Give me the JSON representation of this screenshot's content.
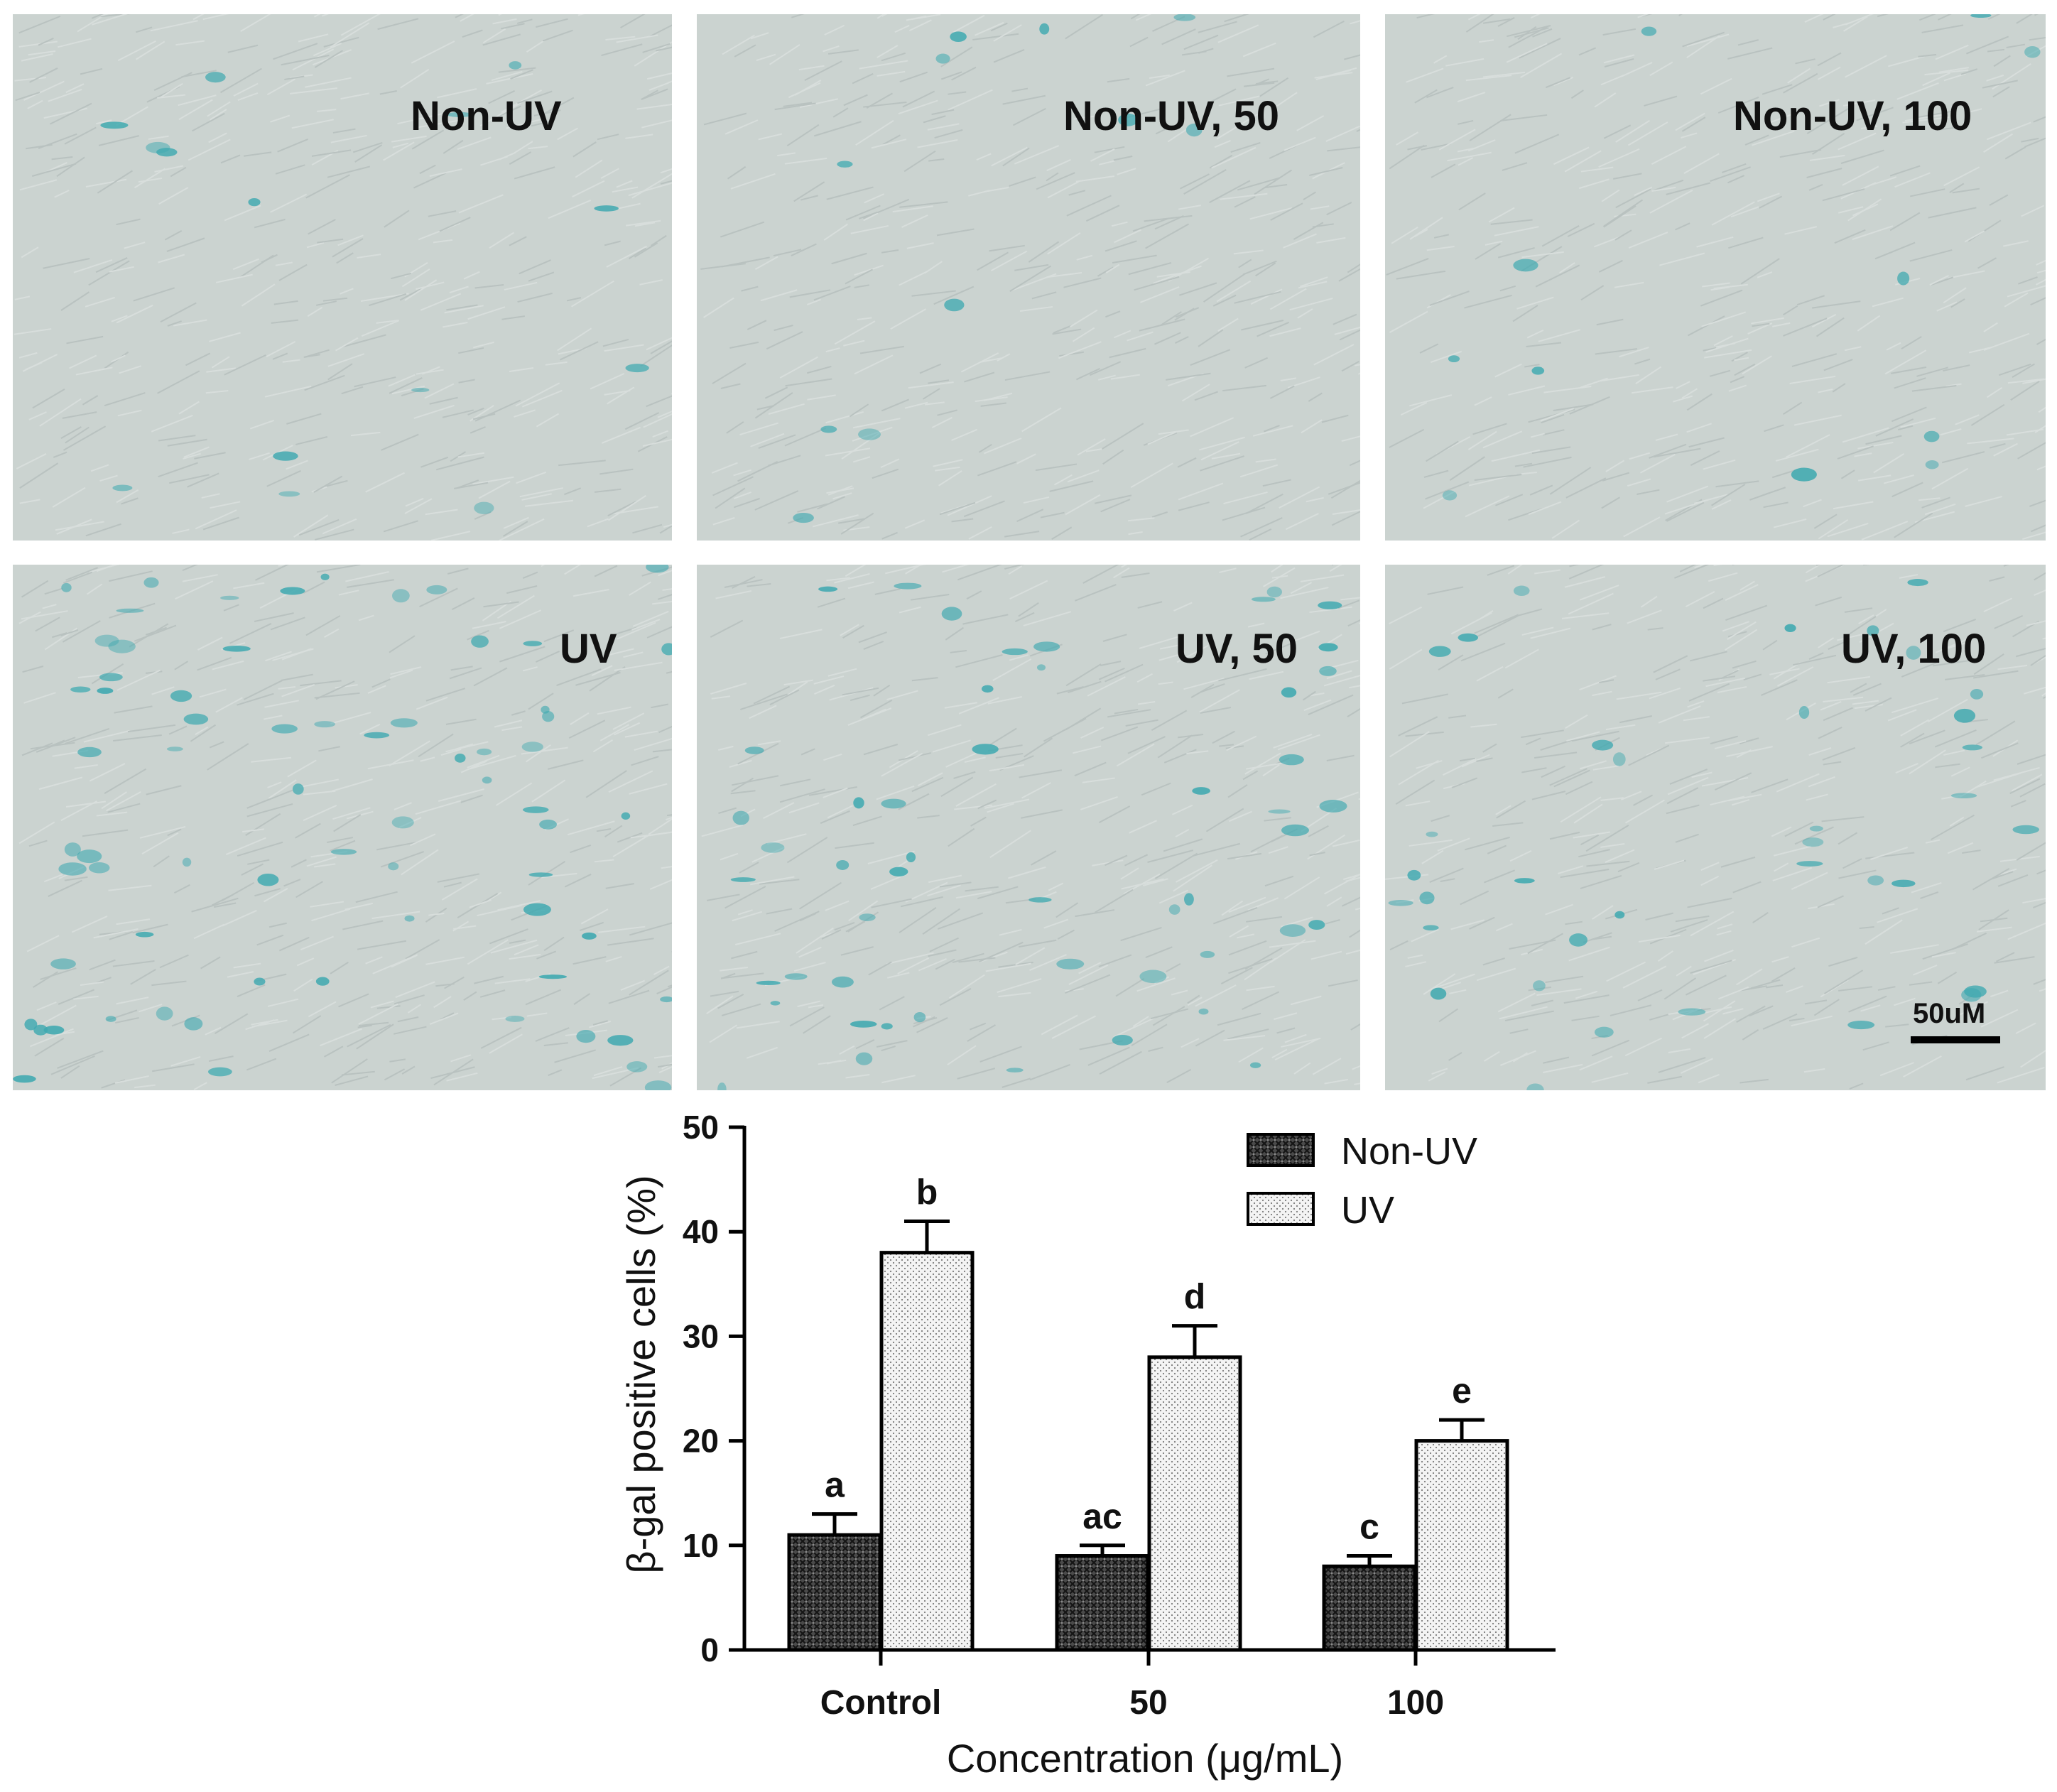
{
  "panels": [
    {
      "id": "p-nonuv",
      "label": "Non-UV",
      "row": 1,
      "stain_density": 0.08
    },
    {
      "id": "p-nonuv50",
      "label": "Non-UV, 50",
      "row": 1,
      "stain_density": 0.06
    },
    {
      "id": "p-nonuv100",
      "label": "Non-UV, 100",
      "row": 1,
      "stain_density": 0.06
    },
    {
      "id": "p-uv",
      "label": "UV",
      "row": 2,
      "stain_density": 0.38
    },
    {
      "id": "p-uv50",
      "label": "UV, 50",
      "row": 2,
      "stain_density": 0.28
    },
    {
      "id": "p-uv100",
      "label": "UV, 100",
      "row": 2,
      "stain_density": 0.2
    }
  ],
  "scale_bar": {
    "label": "50uM"
  },
  "colors": {
    "stain": "#3fa9b0",
    "background": "#cbd3d0",
    "bar_dark": "#2b2b2b",
    "bar_light": "#ffffff"
  },
  "chart_data": {
    "type": "bar",
    "categories": [
      "Control",
      "50",
      "100"
    ],
    "xlabel": "Concentration (μg/mL)",
    "ylabel": "β-gal positive cells (%)",
    "ylim": [
      0,
      50
    ],
    "yticks": [
      0,
      10,
      20,
      30,
      40,
      50
    ],
    "legend_position": "top-right",
    "series": [
      {
        "name": "Non-UV",
        "pattern": "dark-crosshatch",
        "values": [
          11,
          9,
          8
        ],
        "errors": [
          2,
          1,
          1
        ],
        "labels": [
          "a",
          "ac",
          "c"
        ]
      },
      {
        "name": "UV",
        "pattern": "light-dotted",
        "values": [
          38,
          28,
          20
        ],
        "errors": [
          3,
          3,
          2
        ],
        "labels": [
          "b",
          "d",
          "e"
        ]
      }
    ]
  }
}
